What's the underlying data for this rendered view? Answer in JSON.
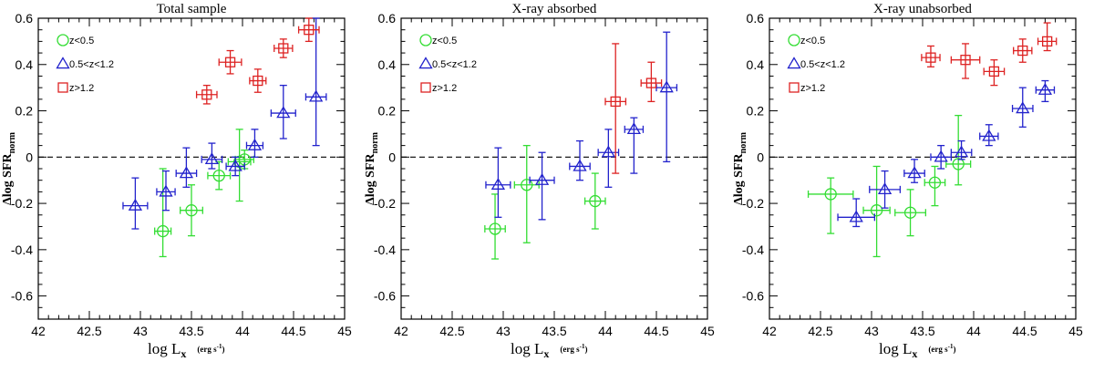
{
  "chart_data": [
    {
      "type": "scatter",
      "title": "Total sample",
      "xlabel": "log L",
      "xlabel_sub": "x",
      "xlabel_unit": "(erg s",
      "xlabel_unit_exp": "-1",
      "xlabel_unit_close": ")",
      "ylabel_prefix": "Δlog SFR",
      "ylabel_sub": "norm",
      "xlim": [
        42,
        45
      ],
      "ylim": [
        -0.7,
        0.6
      ],
      "xticks": [
        "42",
        "42.5",
        "43",
        "43.5",
        "44",
        "44.5",
        "45"
      ],
      "yticks": [
        "-0.6",
        "-0.4",
        "-0.2",
        "0",
        "0.2",
        "0.4",
        "0.6"
      ],
      "reference_line": 0,
      "legend_position": "top-left",
      "series": [
        {
          "name": "z<0.5",
          "marker": "circle",
          "color": "#33dd33",
          "points": [
            {
              "x": 43.22,
              "y": -0.32,
              "xerr": 0.08,
              "yerr_lo": 0.11,
              "yerr_hi": 0.27
            },
            {
              "x": 43.5,
              "y": -0.23,
              "xerr": 0.11,
              "yerr_lo": 0.11,
              "yerr_hi": 0.11
            },
            {
              "x": 43.77,
              "y": -0.08,
              "xerr": 0.11,
              "yerr_lo": 0.06,
              "yerr_hi": 0.06
            },
            {
              "x": 43.97,
              "y": -0.02,
              "xerr": 0.11,
              "yerr_lo": 0.17,
              "yerr_hi": 0.14
            },
            {
              "x": 44.02,
              "y": -0.01,
              "xerr": 0.09,
              "yerr_lo": 0.04,
              "yerr_hi": 0.04
            }
          ]
        },
        {
          "name": "0.5<z<1.2",
          "marker": "triangle",
          "color": "#2222cc",
          "points": [
            {
              "x": 42.95,
              "y": -0.21,
              "xerr": 0.12,
              "yerr_lo": 0.1,
              "yerr_hi": 0.12
            },
            {
              "x": 43.25,
              "y": -0.15,
              "xerr": 0.09,
              "yerr_lo": 0.08,
              "yerr_hi": 0.09
            },
            {
              "x": 43.45,
              "y": -0.07,
              "xerr": 0.1,
              "yerr_lo": 0.06,
              "yerr_hi": 0.11
            },
            {
              "x": 43.7,
              "y": -0.01,
              "xerr": 0.1,
              "yerr_lo": 0.04,
              "yerr_hi": 0.07
            },
            {
              "x": 43.93,
              "y": -0.04,
              "xerr": 0.09,
              "yerr_lo": 0.04,
              "yerr_hi": 0.04
            },
            {
              "x": 44.12,
              "y": 0.05,
              "xerr": 0.08,
              "yerr_lo": 0.05,
              "yerr_hi": 0.07
            },
            {
              "x": 44.4,
              "y": 0.19,
              "xerr": 0.12,
              "yerr_lo": 0.11,
              "yerr_hi": 0.12
            },
            {
              "x": 44.72,
              "y": 0.26,
              "xerr": 0.1,
              "yerr_lo": 0.21,
              "yerr_hi": 0.34
            }
          ]
        },
        {
          "name": "z>1.2",
          "marker": "square",
          "color": "#dd2222",
          "points": [
            {
              "x": 43.65,
              "y": 0.27,
              "xerr": 0.1,
              "yerr_lo": 0.04,
              "yerr_hi": 0.04
            },
            {
              "x": 43.88,
              "y": 0.41,
              "xerr": 0.11,
              "yerr_lo": 0.05,
              "yerr_hi": 0.05
            },
            {
              "x": 44.15,
              "y": 0.33,
              "xerr": 0.08,
              "yerr_lo": 0.05,
              "yerr_hi": 0.05
            },
            {
              "x": 44.4,
              "y": 0.47,
              "xerr": 0.09,
              "yerr_lo": 0.04,
              "yerr_hi": 0.04
            },
            {
              "x": 44.65,
              "y": 0.55,
              "xerr": 0.1,
              "yerr_lo": 0.05,
              "yerr_hi": 0.05
            }
          ]
        }
      ]
    },
    {
      "type": "scatter",
      "title": "X-ray absorbed",
      "xlabel": "log L",
      "xlabel_sub": "x",
      "xlabel_unit": "(erg s",
      "xlabel_unit_exp": "-1",
      "xlabel_unit_close": ")",
      "ylabel_prefix": "Δlog SFR",
      "ylabel_sub": "norm",
      "xlim": [
        42,
        45
      ],
      "ylim": [
        -0.7,
        0.6
      ],
      "xticks": [
        "42",
        "42.5",
        "43",
        "43.5",
        "44",
        "44.5",
        "45"
      ],
      "yticks": [
        "-0.6",
        "-0.4",
        "-0.2",
        "0",
        "0.2",
        "0.4",
        "0.6"
      ],
      "reference_line": 0,
      "legend_position": "top-left",
      "series": [
        {
          "name": "z<0.5",
          "marker": "circle",
          "color": "#33dd33",
          "points": [
            {
              "x": 42.92,
              "y": -0.31,
              "xerr": 0.1,
              "yerr_lo": 0.13,
              "yerr_hi": 0.15
            },
            {
              "x": 43.23,
              "y": -0.12,
              "xerr": 0.12,
              "yerr_lo": 0.25,
              "yerr_hi": 0.17
            },
            {
              "x": 43.9,
              "y": -0.19,
              "xerr": 0.1,
              "yerr_lo": 0.12,
              "yerr_hi": 0.12
            }
          ]
        },
        {
          "name": "0.5<z<1.2",
          "marker": "triangle",
          "color": "#2222cc",
          "points": [
            {
              "x": 42.95,
              "y": -0.12,
              "xerr": 0.12,
              "yerr_lo": 0.14,
              "yerr_hi": 0.16
            },
            {
              "x": 43.38,
              "y": -0.1,
              "xerr": 0.12,
              "yerr_lo": 0.17,
              "yerr_hi": 0.12
            },
            {
              "x": 43.75,
              "y": -0.04,
              "xerr": 0.1,
              "yerr_lo": 0.06,
              "yerr_hi": 0.11
            },
            {
              "x": 44.03,
              "y": 0.02,
              "xerr": 0.1,
              "yerr_lo": 0.15,
              "yerr_hi": 0.1
            },
            {
              "x": 44.28,
              "y": 0.12,
              "xerr": 0.09,
              "yerr_lo": 0.19,
              "yerr_hi": 0.05
            },
            {
              "x": 44.6,
              "y": 0.3,
              "xerr": 0.1,
              "yerr_lo": 0.32,
              "yerr_hi": 0.24
            }
          ]
        },
        {
          "name": "z>1.2",
          "marker": "square",
          "color": "#dd2222",
          "points": [
            {
              "x": 44.1,
              "y": 0.24,
              "xerr": 0.1,
              "yerr_lo": 0.31,
              "yerr_hi": 0.25
            },
            {
              "x": 44.45,
              "y": 0.32,
              "xerr": 0.1,
              "yerr_lo": 0.08,
              "yerr_hi": 0.09
            }
          ]
        }
      ]
    },
    {
      "type": "scatter",
      "title": "X-ray unabsorbed",
      "xlabel": "log L",
      "xlabel_sub": "x",
      "xlabel_unit": "(erg s",
      "xlabel_unit_exp": "-1",
      "xlabel_unit_close": ")",
      "ylabel_prefix": "Δlog SFR",
      "ylabel_sub": "norm",
      "xlim": [
        42,
        45
      ],
      "ylim": [
        -0.7,
        0.6
      ],
      "xticks": [
        "42",
        "42.5",
        "43",
        "43.5",
        "44",
        "44.5",
        "45"
      ],
      "yticks": [
        "-0.6",
        "-0.4",
        "-0.2",
        "0",
        "0.2",
        "0.4",
        "0.6"
      ],
      "reference_line": 0,
      "legend_position": "top-left",
      "series": [
        {
          "name": "z<0.5",
          "marker": "circle",
          "color": "#33dd33",
          "points": [
            {
              "x": 42.6,
              "y": -0.16,
              "xerr": 0.22,
              "yerr_lo": 0.17,
              "yerr_hi": 0.07
            },
            {
              "x": 43.05,
              "y": -0.23,
              "xerr": 0.13,
              "yerr_lo": 0.2,
              "yerr_hi": 0.19
            },
            {
              "x": 43.38,
              "y": -0.24,
              "xerr": 0.15,
              "yerr_lo": 0.1,
              "yerr_hi": 0.1
            },
            {
              "x": 43.62,
              "y": -0.11,
              "xerr": 0.1,
              "yerr_lo": 0.1,
              "yerr_hi": 0.07
            },
            {
              "x": 43.85,
              "y": -0.03,
              "xerr": 0.12,
              "yerr_lo": 0.09,
              "yerr_hi": 0.21
            }
          ]
        },
        {
          "name": "0.5<z<1.2",
          "marker": "triangle",
          "color": "#2222cc",
          "points": [
            {
              "x": 42.85,
              "y": -0.26,
              "xerr": 0.18,
              "yerr_lo": 0.04,
              "yerr_hi": 0.08
            },
            {
              "x": 43.13,
              "y": -0.14,
              "xerr": 0.15,
              "yerr_lo": 0.08,
              "yerr_hi": 0.08
            },
            {
              "x": 43.42,
              "y": -0.07,
              "xerr": 0.1,
              "yerr_lo": 0.04,
              "yerr_hi": 0.06
            },
            {
              "x": 43.68,
              "y": 0.0,
              "xerr": 0.1,
              "yerr_lo": 0.05,
              "yerr_hi": 0.05
            },
            {
              "x": 43.88,
              "y": 0.02,
              "xerr": 0.1,
              "yerr_lo": 0.03,
              "yerr_hi": 0.05
            },
            {
              "x": 44.15,
              "y": 0.09,
              "xerr": 0.09,
              "yerr_lo": 0.04,
              "yerr_hi": 0.05
            },
            {
              "x": 44.48,
              "y": 0.21,
              "xerr": 0.1,
              "yerr_lo": 0.08,
              "yerr_hi": 0.09
            },
            {
              "x": 44.7,
              "y": 0.29,
              "xerr": 0.09,
              "yerr_lo": 0.05,
              "yerr_hi": 0.04
            }
          ]
        },
        {
          "name": "z>1.2",
          "marker": "square",
          "color": "#dd2222",
          "points": [
            {
              "x": 43.58,
              "y": 0.43,
              "xerr": 0.09,
              "yerr_lo": 0.04,
              "yerr_hi": 0.05
            },
            {
              "x": 43.92,
              "y": 0.42,
              "xerr": 0.14,
              "yerr_lo": 0.08,
              "yerr_hi": 0.07
            },
            {
              "x": 44.2,
              "y": 0.37,
              "xerr": 0.1,
              "yerr_lo": 0.06,
              "yerr_hi": 0.05
            },
            {
              "x": 44.48,
              "y": 0.46,
              "xerr": 0.09,
              "yerr_lo": 0.05,
              "yerr_hi": 0.05
            },
            {
              "x": 44.72,
              "y": 0.5,
              "xerr": 0.09,
              "yerr_lo": 0.04,
              "yerr_hi": 0.08
            }
          ]
        }
      ]
    }
  ]
}
